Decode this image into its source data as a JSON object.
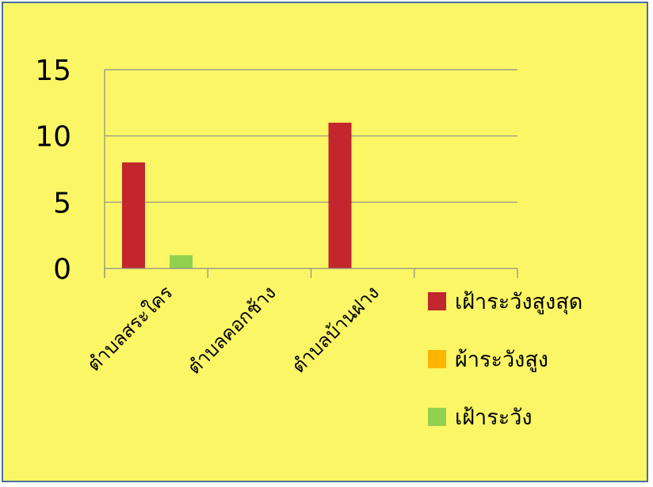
{
  "chart_data": {
    "type": "bar",
    "categories": [
      "ตำบลสระใคร",
      "ตำบลคอกช้าง",
      "ตำบลบ้านฝาง"
    ],
    "series": [
      {
        "name": "เฝ้าระวังสูงสุด",
        "color": "#c1272d",
        "values": [
          8,
          0,
          11
        ]
      },
      {
        "name": "ผ้าระวังสูง",
        "color": "#ffb400",
        "values": [
          0,
          0,
          0
        ]
      },
      {
        "name": "เฝ้าระวัง",
        "color": "#92d050",
        "values": [
          1,
          0,
          0
        ]
      }
    ],
    "ylim": [
      0,
      15
    ],
    "yticks": [
      "0",
      "5",
      "10",
      "15"
    ],
    "grid": true,
    "legend_position": "right",
    "background": "#fbf665",
    "gridline_color": "#8c8c8c"
  }
}
